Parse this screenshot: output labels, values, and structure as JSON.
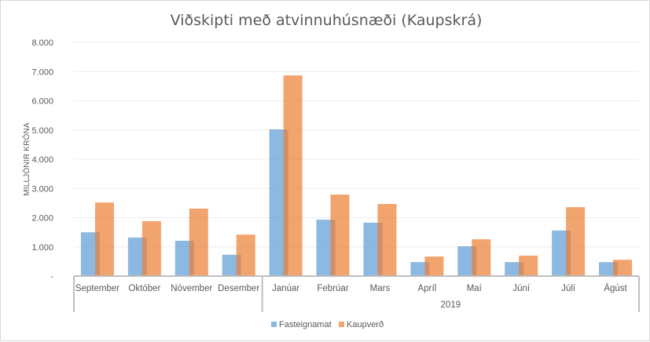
{
  "chart_data": {
    "type": "bar",
    "title": "Viðskipti með atvinnuhúsnæði (Kaupskrá)",
    "xlabel": "",
    "ylabel": "MILLJÓNIR KRÓNA",
    "ylim": [
      0,
      8000
    ],
    "yticks": [
      "-",
      "1.000",
      "2.000",
      "3.000",
      "4.000",
      "5.000",
      "6.000",
      "7.000",
      "8.000"
    ],
    "grid": true,
    "legend_position": "bottom",
    "categories": [
      "September",
      "Október",
      "Nóvember",
      "Desember",
      "Janúar",
      "Febrúar",
      "Mars",
      "Apríl",
      "Maí",
      "Júní",
      "Júlí",
      "Ágúst"
    ],
    "category_groups": [
      {
        "label": "",
        "start": 0,
        "count": 4
      },
      {
        "label": "2019",
        "start": 4,
        "count": 8
      }
    ],
    "series": [
      {
        "name": "Fasteignamat",
        "color": "#5B9BD5",
        "values": [
          1500,
          1320,
          1210,
          730,
          5020,
          1930,
          1830,
          480,
          1020,
          480,
          1560,
          480
        ]
      },
      {
        "name": "Kaupverð",
        "color": "#ED7D31",
        "values": [
          2520,
          1880,
          2310,
          1420,
          6870,
          2790,
          2470,
          670,
          1260,
          700,
          2360,
          560
        ]
      }
    ]
  }
}
